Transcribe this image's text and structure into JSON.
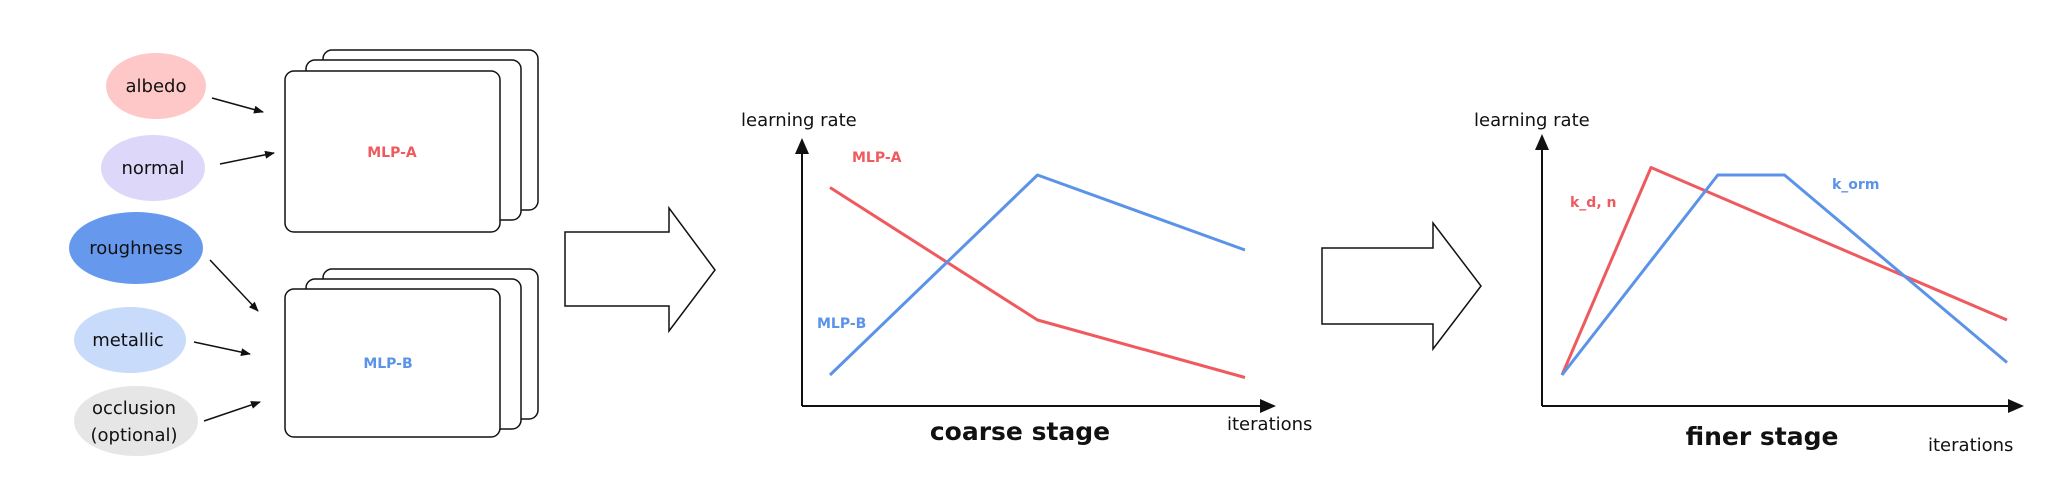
{
  "colors": {
    "red": "#EF5A5F",
    "blue": "#5B93E8",
    "albedo_fill": "#FFC8C8",
    "normal_fill": "#DDD8FA",
    "roughness_fill": "#6699EE",
    "metallic_fill": "#C8DBFB",
    "occlusion_fill": "#E6E6E6"
  },
  "inputs": {
    "albedo": "albedo",
    "normal": "normal",
    "roughness": "roughness",
    "metallic": "metallic",
    "occlusion_line1": "occlusion",
    "occlusion_line2": "(optional)"
  },
  "mlps": {
    "a": "MLP-A",
    "b": "MLP-B"
  },
  "chart_data": [
    {
      "type": "line",
      "title": "coarse stage",
      "xlabel": "iterations",
      "ylabel": "learning rate",
      "x": [
        0,
        0.5,
        1
      ],
      "series": [
        {
          "name": "MLP-A",
          "color": "#EF5A5F",
          "values": [
            0.85,
            0.32,
            0.09
          ]
        },
        {
          "name": "MLP-B",
          "color": "#5B93E8",
          "values": [
            0.1,
            0.9,
            0.6
          ]
        }
      ]
    },
    {
      "type": "line",
      "title": "finer stage",
      "xlabel": "iterations",
      "ylabel": "learning rate",
      "x": [
        0,
        0.2,
        0.35,
        0.5,
        1
      ],
      "series": [
        {
          "name": "k_d, n",
          "color": "#EF5A5F",
          "values": [
            0.1,
            0.93,
            null,
            null,
            0.32
          ]
        },
        {
          "name": "k_orm",
          "color": "#5B93E8",
          "values": [
            0.1,
            null,
            0.9,
            0.9,
            0.15
          ]
        }
      ]
    }
  ]
}
